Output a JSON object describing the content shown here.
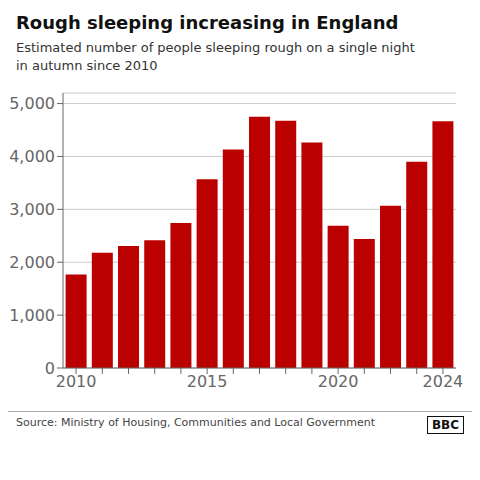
{
  "chart_data": {
    "type": "bar",
    "title": "Rough sleeping increasing in England",
    "subtitle": "Estimated number of people sleeping rough on a single night\nin autumn since 2010",
    "source": "Source: Ministry of Housing, Communities and Local Government",
    "annotations": [
      "BBC"
    ],
    "categories": [
      "2010",
      null,
      null,
      null,
      null,
      "2015",
      null,
      null,
      null,
      null,
      "2020",
      null,
      null,
      null,
      "2024"
    ],
    "values": [
      1768,
      2181,
      2309,
      2414,
      2744,
      3569,
      4134,
      4751,
      4677,
      4266,
      2688,
      2440,
      3069,
      3898,
      4667
    ],
    "color": "#bb0000",
    "ylim": [
      0,
      5200
    ],
    "yticks": [
      0,
      {
        "value": 1000,
        "label": "1,000"
      },
      {
        "value": 2000,
        "label": "2,000"
      },
      {
        "value": 3000,
        "label": "3,000"
      },
      {
        "value": 4000,
        "label": "4,000"
      },
      {
        "value": 5000,
        "label": "5,000"
      }
    ],
    "grid": true
  }
}
